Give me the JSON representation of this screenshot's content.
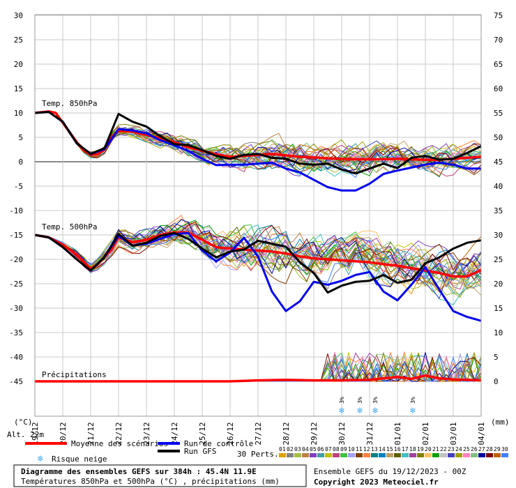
{
  "chart_data": {
    "type": "line",
    "left_axis": {
      "unit": "(°C)",
      "ticks": [
        30,
        25,
        20,
        15,
        10,
        5,
        0,
        -5,
        -10,
        -15,
        -20,
        -25,
        -30,
        -35,
        -40,
        -45
      ],
      "ylim": [
        -45,
        30
      ]
    },
    "right_axis": {
      "unit": "(mm)",
      "ticks": [
        75,
        70,
        65,
        60,
        55,
        50,
        45,
        40,
        35,
        30,
        25,
        20,
        15,
        10,
        5,
        0
      ],
      "ylim": [
        0,
        75
      ]
    },
    "x_dates": [
      "19/12",
      "20/12",
      "21/12",
      "22/12",
      "23/12",
      "24/12",
      "25/12",
      "26/12",
      "27/12",
      "28/12",
      "29/12",
      "30/12",
      "31/12",
      "01/01",
      "02/01",
      "03/01",
      "04/01"
    ],
    "x_hours": [
      0,
      384
    ],
    "panels": {
      "t850": "Temp. 850hPa",
      "t500": "Temp. 500hPa",
      "precip": "Précipitations"
    },
    "series": [
      {
        "name": "Moyenne des scénarios",
        "color": "#ff0000",
        "panel": "t850",
        "x": [
          0,
          12,
          18,
          24,
          36,
          42,
          48,
          54,
          60,
          66,
          72,
          84,
          96,
          108,
          120,
          132,
          144,
          156,
          168,
          180,
          192,
          204,
          216,
          228,
          240,
          252,
          264,
          276,
          288,
          300,
          312,
          324,
          336,
          348,
          360,
          372,
          384
        ],
        "y": [
          10,
          10.3,
          10,
          8,
          4,
          2.3,
          1.5,
          1.5,
          2.5,
          5,
          6.3,
          6.2,
          5.5,
          4.8,
          4,
          3,
          2.3,
          1.5,
          1,
          1.2,
          1.4,
          1.6,
          1.3,
          1,
          0.9,
          0.7,
          0.6,
          0.5,
          0.5,
          0.5,
          0.6,
          0.5,
          0.4,
          0.4,
          0.6,
          0.8,
          1
        ]
      },
      {
        "name": "Run de contrôle",
        "color": "#0000ee",
        "panel": "t850",
        "x": [
          0,
          12,
          24,
          36,
          48,
          60,
          72,
          84,
          96,
          108,
          120,
          132,
          144,
          156,
          168,
          180,
          192,
          204,
          216,
          228,
          240,
          252,
          264,
          276,
          288,
          300,
          312,
          324,
          336,
          348,
          360,
          372,
          384
        ],
        "y": [
          10,
          10.2,
          8.2,
          3.8,
          1.6,
          2.6,
          6.7,
          6.4,
          5.8,
          4.4,
          3.4,
          2.2,
          0.6,
          -0.7,
          -0.6,
          -0.6,
          -0.4,
          -0.2,
          -1.4,
          -2.2,
          -3.7,
          -5.2,
          -5.9,
          -5.9,
          -4.5,
          -2.5,
          -1.8,
          -1.2,
          -0.6,
          -0.2,
          -0.6,
          -1.4,
          -1.4
        ]
      },
      {
        "name": "Run GFS",
        "color": "#000000",
        "panel": "t850",
        "x": [
          0,
          12,
          24,
          36,
          48,
          60,
          72,
          84,
          96,
          108,
          120,
          132,
          144,
          156,
          168,
          180,
          192,
          204,
          216,
          228,
          240,
          252,
          264,
          276,
          288,
          300,
          312,
          324,
          336,
          348,
          360,
          372,
          384
        ],
        "y": [
          10,
          10.2,
          8.2,
          3.8,
          1.6,
          2.8,
          9.8,
          8.2,
          7.2,
          5.2,
          3.6,
          3.4,
          2.4,
          1.2,
          0.6,
          1.4,
          1.6,
          0.8,
          0.6,
          -0.4,
          -0.6,
          -0.4,
          -1.6,
          -2.4,
          -1.4,
          -0.4,
          -1.3,
          0.8,
          1.2,
          0.4,
          0.6,
          1.8,
          3.2
        ]
      },
      {
        "name": "Moyenne des scénarios",
        "color": "#ff0000",
        "panel": "t500",
        "x": [
          0,
          12,
          24,
          36,
          48,
          54,
          60,
          66,
          72,
          84,
          96,
          108,
          120,
          132,
          144,
          156,
          168,
          180,
          192,
          204,
          216,
          228,
          240,
          252,
          264,
          276,
          288,
          300,
          312,
          324,
          336,
          348,
          360,
          372,
          384
        ],
        "y": [
          -15,
          -15.5,
          -17,
          -19,
          -22,
          -21,
          -19.5,
          -18,
          -15.5,
          -16.5,
          -16,
          -15,
          -14.5,
          -14.5,
          -16,
          -17.5,
          -17.8,
          -18,
          -18.2,
          -18.4,
          -18.8,
          -19.4,
          -19.8,
          -20,
          -20.2,
          -20.4,
          -20.6,
          -21,
          -21.3,
          -21.8,
          -22.3,
          -22.8,
          -23.5,
          -23.5,
          -22.2
        ]
      },
      {
        "name": "Run de contrôle",
        "color": "#0000ee",
        "panel": "t500",
        "x": [
          0,
          12,
          24,
          36,
          48,
          60,
          72,
          84,
          96,
          108,
          120,
          132,
          144,
          156,
          168,
          180,
          192,
          204,
          216,
          228,
          240,
          252,
          264,
          276,
          288,
          300,
          312,
          324,
          336,
          348,
          360,
          372,
          384
        ],
        "y": [
          -15,
          -15.5,
          -17.5,
          -20,
          -22.3,
          -19.5,
          -15.2,
          -17.2,
          -16.8,
          -15.8,
          -14.8,
          -14.6,
          -18.2,
          -20.4,
          -18.6,
          -15.6,
          -19.4,
          -26.6,
          -30.6,
          -28.6,
          -24.6,
          -25.2,
          -24.4,
          -23.2,
          -22.6,
          -26.6,
          -28.4,
          -25.2,
          -21.6,
          -26.2,
          -30.6,
          -31.8,
          -32.6
        ]
      },
      {
        "name": "Run GFS",
        "color": "#000000",
        "panel": "t500",
        "x": [
          0,
          12,
          24,
          36,
          48,
          60,
          72,
          84,
          96,
          108,
          120,
          132,
          144,
          156,
          168,
          180,
          192,
          204,
          216,
          228,
          240,
          252,
          264,
          276,
          288,
          300,
          312,
          324,
          336,
          348,
          360,
          372,
          384
        ],
        "y": [
          -15,
          -15.5,
          -17.5,
          -20,
          -22.3,
          -19.5,
          -14.8,
          -17.2,
          -16.6,
          -15.2,
          -14.6,
          -15.8,
          -17.8,
          -19.6,
          -18.4,
          -18,
          -16.2,
          -16.8,
          -17.4,
          -20.6,
          -22.8,
          -26.8,
          -25.4,
          -24.6,
          -24.4,
          -23.2,
          -24.8,
          -24.2,
          -20.8,
          -19.6,
          -17.8,
          -16.6,
          -16.1
        ]
      },
      {
        "name": "Moyenne des scénarios",
        "color": "#ff0000",
        "panel": "precip",
        "x": [
          0,
          48,
          96,
          144,
          168,
          192,
          216,
          240,
          264,
          288,
          300,
          312,
          324,
          336,
          348,
          360,
          372,
          384
        ],
        "y": [
          0,
          0,
          0,
          0,
          0,
          0.2,
          0.3,
          0.2,
          0.2,
          0.3,
          0.6,
          0.9,
          0.5,
          1.2,
          0.6,
          0.4,
          0.3,
          0.2
        ]
      }
    ],
    "snow_risk_percent": [
      "3%",
      "3%",
      "3%",
      "3%"
    ],
    "snow_risk_dates_index": [
      11.0,
      11.65,
      12.2,
      13.55
    ]
  },
  "labels": {
    "unit_left": "(°C)",
    "unit_right": "(mm)",
    "altitude": "Alt. 22m",
    "legend_mean": "Moyenne des scénarios",
    "legend_control": "Run de contrôle",
    "legend_gfs": "Run GFS",
    "legend_snow": "Risque neige",
    "perts_label": "30 Perts.",
    "pert_numbers": [
      "01",
      "02",
      "03",
      "04",
      "05",
      "06",
      "07",
      "08",
      "09",
      "10",
      "11",
      "12",
      "13",
      "14",
      "15",
      "16",
      "17",
      "18",
      "19",
      "20",
      "21",
      "22",
      "23",
      "24",
      "25",
      "26",
      "27",
      "28",
      "29",
      "30"
    ],
    "title_line1": "Diagramme des ensembles GEFS sur 384h : 45.4N 11.9E",
    "title_line2": "Températures 850hPa et 500hPa (°C) , précipitations (mm)",
    "run_info": "Ensemble GEFS du 19/12/2023 - 00Z",
    "copyright": "Copyright 2023 Meteociel.fr"
  },
  "colors": {
    "mean": "#ff0000",
    "control": "#0000ee",
    "gfs": "#000000",
    "snow": "#3fa9f5",
    "perts": [
      "#e0a000",
      "#808080",
      "#a0c040",
      "#c08040",
      "#8040c0",
      "#40a0a0",
      "#c0c000",
      "#c04080",
      "#40c040",
      "#a0a0ff",
      "#804000",
      "#ff8040",
      "#008080",
      "#0080c0",
      "#c0a060",
      "#606000",
      "#40c0c0",
      "#a040a0",
      "#808000",
      "#ffc060",
      "#00a000",
      "#c0c0c0",
      "#4040c0",
      "#a0a000",
      "#ff80c0",
      "#80c080",
      "#0000a0",
      "#800000",
      "#c06000",
      "#4080ff"
    ]
  }
}
